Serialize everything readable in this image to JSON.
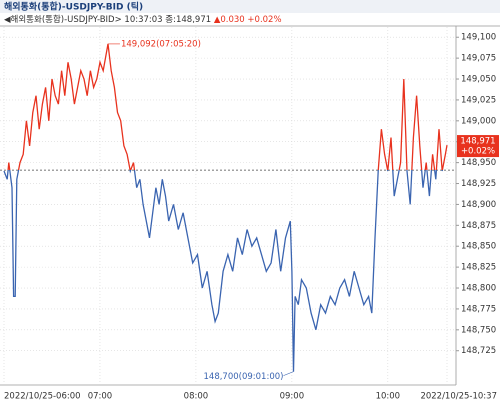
{
  "chart_data": {
    "type": "line",
    "title": "해외통화(통합)-USDJPY-BID (틱)",
    "subtitle": "◀해외통화(통합)-USDJPY-BID> 10:37:03 종:148,971",
    "change": "▲0.030 +0.02%",
    "last_label": "148,971",
    "last_change": "+0.02%",
    "reference_line": 148.941,
    "up_color": "#e8321e",
    "down_color": "#3a64b0",
    "xlim": [
      "06:00",
      "10:37"
    ],
    "xticks": [
      {
        "value": "06:00",
        "label": "2022/10/25-06:00"
      },
      "07:00",
      "08:00",
      "09:00",
      "10:00",
      {
        "value": "10:37",
        "label": "2022/10/25-10:37"
      }
    ],
    "ylim": [
      148.684,
      149.123
    ],
    "yticks": [
      {
        "value": 149.1,
        "label": "149,100"
      },
      {
        "value": 149.075,
        "label": "149,075"
      },
      {
        "value": 149.05,
        "label": "149,050"
      },
      {
        "value": 149.025,
        "label": "149,025"
      },
      {
        "value": 149,
        "label": "149,000"
      },
      {
        "value": 148.975,
        "label": "148,975"
      },
      {
        "value": 148.95,
        "label": "148,950"
      },
      {
        "value": 148.925,
        "label": "148,925"
      },
      {
        "value": 148.9,
        "label": "148,900"
      },
      {
        "value": 148.875,
        "label": "148,875"
      },
      {
        "value": 148.85,
        "label": "148,850"
      },
      {
        "value": 148.825,
        "label": "148,825"
      },
      {
        "value": 148.8,
        "label": "148,800"
      },
      {
        "value": 148.775,
        "label": "148,775"
      },
      {
        "value": 148.75,
        "label": "148,750"
      },
      {
        "value": 148.725,
        "label": "148,725"
      }
    ],
    "annotations": [
      {
        "text": "149,092(07:05:20)",
        "x": "07:05",
        "y": 149.092
      },
      {
        "text": "148,700(09:01:00)",
        "x": "09:01",
        "y": 148.7
      }
    ],
    "x": [
      "06:00",
      "06:02",
      "06:03",
      "06:05",
      "06:06",
      "06:07",
      "06:08",
      "06:10",
      "06:12",
      "06:14",
      "06:16",
      "06:18",
      "06:20",
      "06:22",
      "06:24",
      "06:26",
      "06:28",
      "06:30",
      "06:32",
      "06:34",
      "06:36",
      "06:38",
      "06:40",
      "06:42",
      "06:44",
      "06:46",
      "06:48",
      "06:50",
      "06:52",
      "06:54",
      "06:56",
      "06:58",
      "07:00",
      "07:02",
      "07:05",
      "07:07",
      "07:09",
      "07:11",
      "07:13",
      "07:15",
      "07:17",
      "07:19",
      "07:21",
      "07:23",
      "07:25",
      "07:27",
      "07:29",
      "07:31",
      "07:33",
      "07:35",
      "07:37",
      "07:39",
      "07:41",
      "07:43",
      "07:46",
      "07:49",
      "07:52",
      "07:55",
      "07:58",
      "08:01",
      "08:04",
      "08:07",
      "08:10",
      "08:12",
      "08:14",
      "08:17",
      "08:20",
      "08:23",
      "08:26",
      "08:29",
      "08:32",
      "08:35",
      "08:38",
      "08:41",
      "08:44",
      "08:47",
      "08:50",
      "08:53",
      "08:56",
      "08:59",
      "09:00",
      "09:01",
      "09:02",
      "09:04",
      "09:06",
      "09:09",
      "09:12",
      "09:15",
      "09:18",
      "09:21",
      "09:24",
      "09:27",
      "09:30",
      "09:33",
      "09:36",
      "09:39",
      "09:42",
      "09:45",
      "09:48",
      "09:50",
      "09:52",
      "09:54",
      "09:56",
      "09:58",
      "10:00",
      "10:02",
      "10:04",
      "10:06",
      "10:08",
      "10:10",
      "10:12",
      "10:14",
      "10:16",
      "10:18",
      "10:20",
      "10:22",
      "10:24",
      "10:26",
      "10:28",
      "10:30",
      "10:32",
      "10:34",
      "10:36",
      "10:37"
    ],
    "values": [
      148.94,
      148.93,
      148.95,
      148.92,
      148.79,
      148.79,
      148.93,
      148.95,
      148.96,
      149.0,
      148.97,
      149.01,
      149.03,
      148.99,
      149.02,
      149.04,
      149.0,
      149.05,
      149.03,
      149.02,
      149.06,
      149.03,
      149.07,
      149.05,
      149.02,
      149.04,
      149.06,
      149.05,
      149.03,
      149.06,
      149.04,
      149.05,
      149.07,
      149.06,
      149.092,
      149.06,
      149.04,
      149.01,
      149.0,
      148.97,
      148.96,
      148.94,
      148.95,
      148.92,
      148.93,
      148.9,
      148.88,
      148.86,
      148.89,
      148.92,
      148.9,
      148.93,
      148.91,
      148.88,
      148.9,
      148.87,
      148.89,
      148.86,
      148.83,
      148.84,
      148.8,
      148.82,
      148.78,
      148.76,
      148.77,
      148.82,
      148.84,
      148.82,
      148.86,
      148.84,
      148.87,
      148.85,
      148.86,
      148.84,
      148.82,
      148.83,
      148.87,
      148.82,
      148.86,
      148.88,
      148.82,
      148.7,
      148.79,
      148.78,
      148.81,
      148.8,
      148.77,
      148.75,
      148.78,
      148.77,
      148.79,
      148.78,
      148.8,
      148.81,
      148.79,
      148.82,
      148.8,
      148.78,
      148.79,
      148.77,
      148.86,
      148.94,
      148.99,
      148.96,
      148.94,
      148.98,
      148.91,
      148.93,
      148.95,
      149.05,
      148.94,
      148.9,
      148.98,
      149.03,
      148.97,
      148.92,
      148.95,
      148.91,
      148.96,
      148.93,
      148.99,
      148.94,
      148.96,
      148.971
    ]
  }
}
